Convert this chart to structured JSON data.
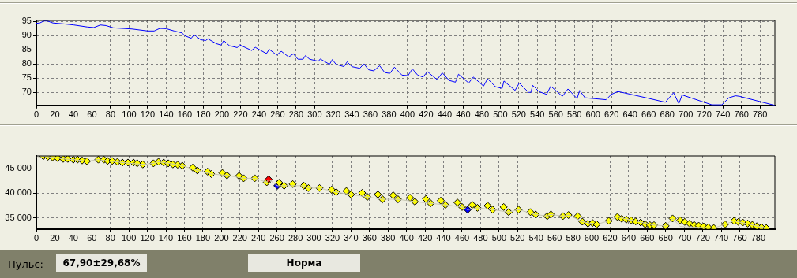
{
  "chart_data": [
    {
      "type": "line",
      "marker": "none",
      "grid": true,
      "legend": false,
      "xlim": [
        0,
        796
      ],
      "xticks": [
        0,
        20,
        40,
        60,
        80,
        100,
        120,
        140,
        160,
        180,
        200,
        220,
        240,
        260,
        280,
        300,
        320,
        340,
        360,
        380,
        400,
        420,
        440,
        460,
        480,
        500,
        520,
        540,
        560,
        580,
        600,
        620,
        640,
        660,
        680,
        700,
        720,
        740,
        760,
        780
      ],
      "ylim": [
        65.4,
        95.4
      ],
      "yticks": [
        70,
        75,
        80,
        85,
        90,
        95
      ],
      "series": [
        {
          "color": "#0000ff",
          "x": [
            0,
            3.7,
            8,
            12,
            18,
            29,
            40.6,
            55,
            62,
            69,
            75,
            83,
            103,
            120,
            127,
            133,
            140,
            148.5,
            157,
            160,
            167,
            170,
            177,
            182.5,
            185,
            194,
            199,
            202,
            208,
            216.6,
            219,
            232,
            236,
            248,
            251,
            259,
            264,
            272,
            277,
            282,
            287.5,
            290,
            294.6,
            304,
            306,
            316,
            319,
            323,
            331.5,
            335,
            340,
            348.6,
            353,
            358,
            363.6,
            370,
            375.5,
            381,
            386,
            394,
            400.6,
            405.3,
            411,
            416.7,
            421.5,
            432,
            437.5,
            445,
            451.7,
            455,
            466,
            471,
            482,
            486.3,
            494.8,
            502,
            504,
            516,
            520.5,
            530.5,
            533,
            535,
            541.6,
            550,
            554.4,
            567,
            573,
            582.8,
            585.6,
            591.3,
            614,
            619.7,
            626.8,
            634,
            657,
            678,
            686.8,
            692.5,
            696,
            728,
            738.8,
            746.5,
            753.6,
            757.8,
            796
          ],
          "values": [
            94.4,
            94.5,
            95.2,
            95.2,
            94.5,
            94.2,
            93.8,
            93.1,
            92.9,
            93.8,
            93.6,
            92.8,
            92.4,
            91.7,
            91.7,
            92.6,
            92.5,
            91.7,
            91.0,
            90.0,
            89.1,
            90.4,
            88.6,
            88.3,
            88.9,
            87.2,
            86.7,
            88.3,
            86.5,
            85.8,
            86.8,
            84.8,
            85.9,
            83.7,
            85.2,
            83.2,
            84.5,
            82.5,
            83.6,
            81.7,
            81.7,
            83.0,
            81.7,
            81.0,
            81.8,
            79.9,
            81.6,
            79.9,
            79.1,
            80.8,
            79.1,
            78.5,
            80.1,
            78.0,
            77.6,
            79.4,
            77.0,
            76.7,
            78.9,
            76.1,
            75.9,
            78.3,
            76.1,
            75.4,
            77.3,
            74.5,
            76.9,
            74.2,
            73.6,
            76.4,
            73.3,
            75.4,
            72.2,
            74.8,
            72.0,
            71.4,
            74.0,
            70.7,
            73.3,
            70.0,
            70.0,
            72.5,
            70.3,
            69.3,
            72.2,
            68.6,
            71.2,
            67.8,
            70.7,
            68.1,
            67.4,
            69.3,
            70.3,
            69.8,
            68.1,
            66.5,
            69.9,
            66.0,
            69.1,
            65.6,
            65.6,
            68.1,
            68.8,
            68.6,
            65.4
          ]
        }
      ]
    },
    {
      "type": "scatter",
      "marker": "diamond",
      "grid": true,
      "legend": false,
      "xlim": [
        0,
        798
      ],
      "xticks": [
        0,
        20,
        40,
        60,
        80,
        100,
        120,
        140,
        160,
        180,
        200,
        220,
        240,
        260,
        280,
        300,
        320,
        340,
        360,
        380,
        400,
        420,
        440,
        460,
        480,
        500,
        520,
        540,
        560,
        580,
        600,
        620,
        640,
        660,
        680,
        700,
        720,
        740,
        760,
        780
      ],
      "ylim": [
        32700,
        47600
      ],
      "yticks": [
        {
          "value": 35000,
          "label": "35 000"
        },
        {
          "value": 40000,
          "label": "40 000"
        },
        {
          "value": 45000,
          "label": "45 000"
        }
      ],
      "series": [
        {
          "type": "line",
          "marker": "none",
          "color": "#c8c8b4",
          "x": [
            0,
            7.6,
            17.5,
            29,
            40,
            54.7,
            67,
            77,
            93,
            115,
            126.6,
            132,
            152.7,
            157.7,
            174,
            189,
            206,
            224,
            236,
            249,
            251,
            260.4,
            267.7,
            289,
            294,
            306,
            324,
            340,
            357.6,
            374,
            390.8,
            409,
            426,
            442,
            460,
            466,
            476.6,
            493,
            510.4,
            521,
            539.5,
            552,
            556,
            569,
            575,
            590,
            605.5,
            618.5,
            627.8,
            667.4,
            680,
            687.5,
            695.6,
            732,
            744.2,
            753.8,
            788.7
          ],
          "values": [
            47200,
            47550,
            47330,
            47000,
            46850,
            46520,
            46850,
            46580,
            46250,
            45870,
            46090,
            46400,
            45810,
            45600,
            44620,
            43910,
            43640,
            43040,
            43040,
            42230,
            42830,
            41520,
            41520,
            41520,
            41040,
            41040,
            40220,
            39730,
            39240,
            38760,
            38760,
            38270,
            37940,
            37620,
            37180,
            36640,
            37020,
            36640,
            36150,
            36640,
            35660,
            35330,
            35660,
            35330,
            35550,
            34190,
            33650,
            34360,
            35170,
            33490,
            33330,
            34850,
            33200,
            32890,
            33650,
            34360,
            32890
          ]
        },
        {
          "type": "scatter",
          "x": [
            7.6,
            12.5,
            17.5,
            23,
            29,
            34,
            40,
            44.5,
            49.5,
            54.7,
            67,
            73,
            77,
            82,
            87.6,
            93,
            99,
            105,
            109,
            115,
            126.6,
            132,
            137.6,
            142.6,
            147.5,
            152.7,
            157.7,
            169,
            174,
            185,
            189,
            201,
            206,
            219,
            224,
            236,
            249,
            251,
            260.4,
            262.4,
            267.7,
            277,
            289,
            294,
            306,
            319,
            324,
            335,
            340,
            352,
            357.6,
            369,
            374,
            385.6,
            390.8,
            403.8,
            409,
            421,
            426,
            437,
            442,
            455,
            460,
            466,
            471,
            476.6,
            487.6,
            493,
            505,
            510.4,
            521,
            533.8,
            539.5,
            552,
            556,
            569,
            575,
            585,
            590,
            596,
            601,
            605.5,
            618.5,
            627.8,
            632.5,
            637.5,
            642.7,
            647.6,
            653,
            657.9,
            663,
            667.4,
            680,
            687.5,
            695.6,
            700.6,
            705.8,
            710.7,
            715.7,
            721,
            726,
            732,
            744.2,
            753.8,
            758.5,
            763.4,
            768.6,
            773.6,
            778.5,
            783.5,
            788.7
          ],
          "values": [
            47550,
            47440,
            47330,
            47170,
            47000,
            47000,
            46850,
            46850,
            46680,
            46520,
            46850,
            46850,
            46580,
            46580,
            46400,
            46250,
            46250,
            46250,
            46090,
            45870,
            46090,
            46400,
            46250,
            46090,
            45870,
            45810,
            45600,
            45220,
            44620,
            44400,
            43910,
            44130,
            43640,
            43530,
            43040,
            43040,
            42230,
            42830,
            41520,
            42120,
            41520,
            41850,
            41520,
            41040,
            41040,
            40710,
            40220,
            40440,
            39730,
            40060,
            39240,
            39730,
            38760,
            39570,
            38760,
            39080,
            38270,
            38810,
            37940,
            38480,
            37620,
            38100,
            37180,
            36640,
            37620,
            37020,
            37450,
            36640,
            37180,
            36150,
            36640,
            36150,
            35660,
            35330,
            35660,
            35330,
            35550,
            35330,
            34190,
            33810,
            33920,
            33650,
            34360,
            35170,
            34790,
            34630,
            34470,
            34250,
            34030,
            33650,
            33490,
            33490,
            33330,
            34850,
            34470,
            34140,
            33810,
            33540,
            33380,
            33220,
            33050,
            32890,
            33650,
            34360,
            34140,
            34030,
            33810,
            33540,
            33270,
            33050,
            32890
          ],
          "colors": [
            "#ffff00",
            "#ffff00",
            "#ffff00",
            "#ffff00",
            "#ffff00",
            "#ffff00",
            "#ffff00",
            "#ffff00",
            "#ffff00",
            "#ffff00",
            "#ffff00",
            "#ffff00",
            "#ffff00",
            "#ffff00",
            "#ffff00",
            "#ffff00",
            "#ffff00",
            "#ffff00",
            "#ffff00",
            "#ffff00",
            "#ffff00",
            "#ffff00",
            "#ffff00",
            "#ffff00",
            "#ffff00",
            "#ffff00",
            "#ffff00",
            "#ffff00",
            "#ffff00",
            "#ffff00",
            "#ffff00",
            "#ffff00",
            "#ffff00",
            "#ffff00",
            "#ffff00",
            "#ffff00",
            "#ffff00",
            "#ff0000",
            "#0000ff",
            "#ffff00",
            "#ffff00",
            "#ffff00",
            "#ffff00",
            "#ffff00",
            "#ffff00",
            "#ffff00",
            "#ffff00",
            "#ffff00",
            "#ffff00",
            "#ffff00",
            "#ffff00",
            "#ffff00",
            "#ffff00",
            "#ffff00",
            "#ffff00",
            "#ffff00",
            "#ffff00",
            "#ffff00",
            "#ffff00",
            "#ffff00",
            "#ffff00",
            "#ffff00",
            "#ffff00",
            "#0000ff",
            "#ffff00",
            "#ffff00",
            "#ffff00",
            "#ffff00",
            "#ffff00",
            "#ffff00",
            "#ffff00",
            "#ffff00",
            "#ffff00",
            "#ffff00",
            "#ffff00",
            "#ffff00",
            "#ffff00",
            "#ffff00",
            "#ffff00",
            "#ffff00",
            "#ffff00",
            "#ffff00",
            "#ffff00",
            "#ffff00",
            "#ffff00",
            "#ffff00",
            "#ffff00",
            "#ffff00",
            "#ffff00",
            "#ffff00",
            "#ffff00",
            "#ffff00",
            "#ffff00",
            "#ffff00",
            "#ffff00",
            "#ffff00",
            "#ffff00",
            "#ffff00",
            "#ffff00",
            "#ffff00",
            "#ffff00",
            "#ffff00",
            "#ffff00",
            "#ffff00",
            "#ffff00",
            "#ffff00",
            "#ffff00",
            "#ffff00",
            "#ffff00",
            "#ffff00",
            "#ffff00"
          ]
        }
      ]
    },
    {
      "type": "other",
      "annotations": [
        "Пульс:",
        "67,90±29,68%",
        "Норма"
      ]
    }
  ]
}
